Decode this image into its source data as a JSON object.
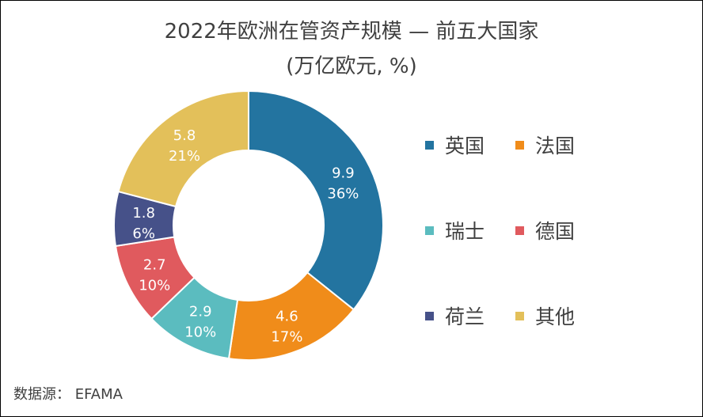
{
  "chart_data": {
    "type": "pie",
    "donut": true,
    "title": "2022年欧洲在管资产规模 — 前五大国家",
    "subtitle": "(万亿欧元, %)",
    "categories": [
      "英国",
      "法国",
      "瑞士",
      "德国",
      "荷兰",
      "其他"
    ],
    "values": [
      9.9,
      4.6,
      2.9,
      2.7,
      1.8,
      5.8
    ],
    "value_labels": [
      "9.9",
      "4.6",
      "2.9",
      "2.7",
      "1.8",
      "5.8"
    ],
    "percent_labels": [
      "36%",
      "17%",
      "10%",
      "10%",
      "6%",
      "21%"
    ],
    "colors": [
      "#2374a0",
      "#f08c1a",
      "#5bbcbf",
      "#e05a5e",
      "#465189",
      "#e3c05a"
    ],
    "legend_position": "right"
  },
  "source": "数据源：  EFAMA"
}
